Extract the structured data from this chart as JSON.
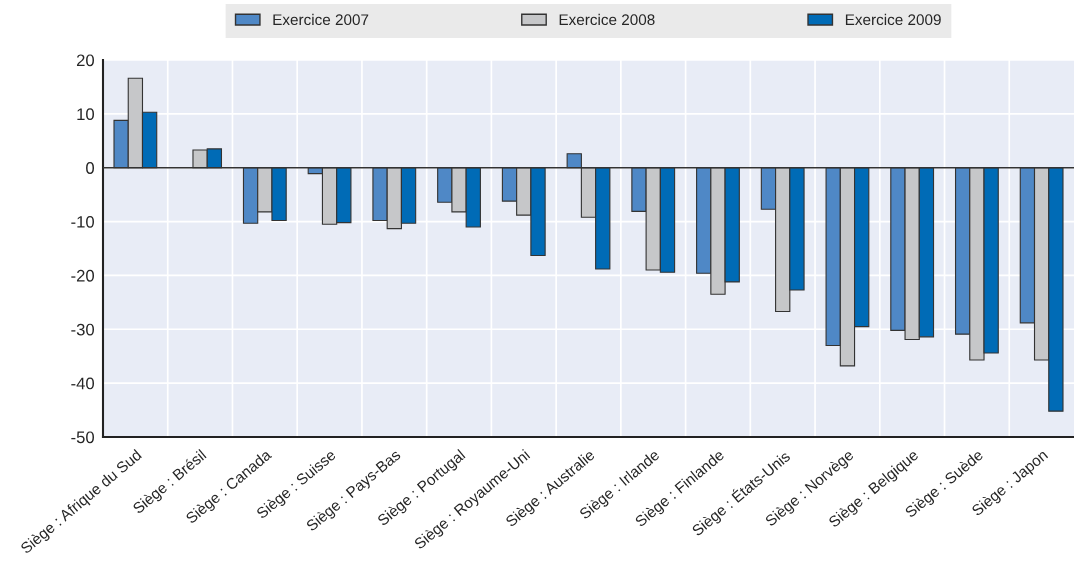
{
  "chart_data": {
    "type": "bar",
    "categories": [
      "Siège : Afrique du Sud",
      "Siège : Brésil",
      "Siège : Canada",
      "Siège : Suisse",
      "Siège : Pays-Bas",
      "Siège : Portugal",
      "Siège : Royaume-Uni",
      "Siège : Australie",
      "Siège : Irlande",
      "Siège : Finlande",
      "Siège : États-Unis",
      "Siège : Norvège",
      "Siège : Belgique",
      "Siège : Suède",
      "Siège : Japon"
    ],
    "series": [
      {
        "name": "Exercice 2007",
        "color": "#4f88c6",
        "values": [
          8.8,
          null,
          -10.3,
          -1.1,
          -9.8,
          -6.4,
          -6.2,
          2.6,
          -8.1,
          -19.6,
          -7.7,
          -33.0,
          -30.2,
          -30.9,
          -28.8
        ]
      },
      {
        "name": "Exercice 2008",
        "color": "#c6c7c9",
        "values": [
          16.6,
          3.3,
          -8.2,
          -10.5,
          -11.3,
          -8.2,
          -8.8,
          -9.2,
          -19.0,
          -23.5,
          -26.7,
          -36.8,
          -31.9,
          -35.7,
          -35.7
        ]
      },
      {
        "name": "Exercice 2009",
        "color": "#006bb6",
        "values": [
          10.3,
          3.5,
          -9.8,
          -10.2,
          -10.3,
          -11.0,
          -16.3,
          -18.8,
          -19.4,
          -21.2,
          -22.7,
          -29.5,
          -31.4,
          -34.4,
          -45.2
        ]
      }
    ],
    "ylim": [
      -50,
      20
    ],
    "yticks": [
      -50,
      -40,
      -30,
      -20,
      -10,
      0,
      10,
      20
    ],
    "grid": true,
    "legend": "top"
  }
}
